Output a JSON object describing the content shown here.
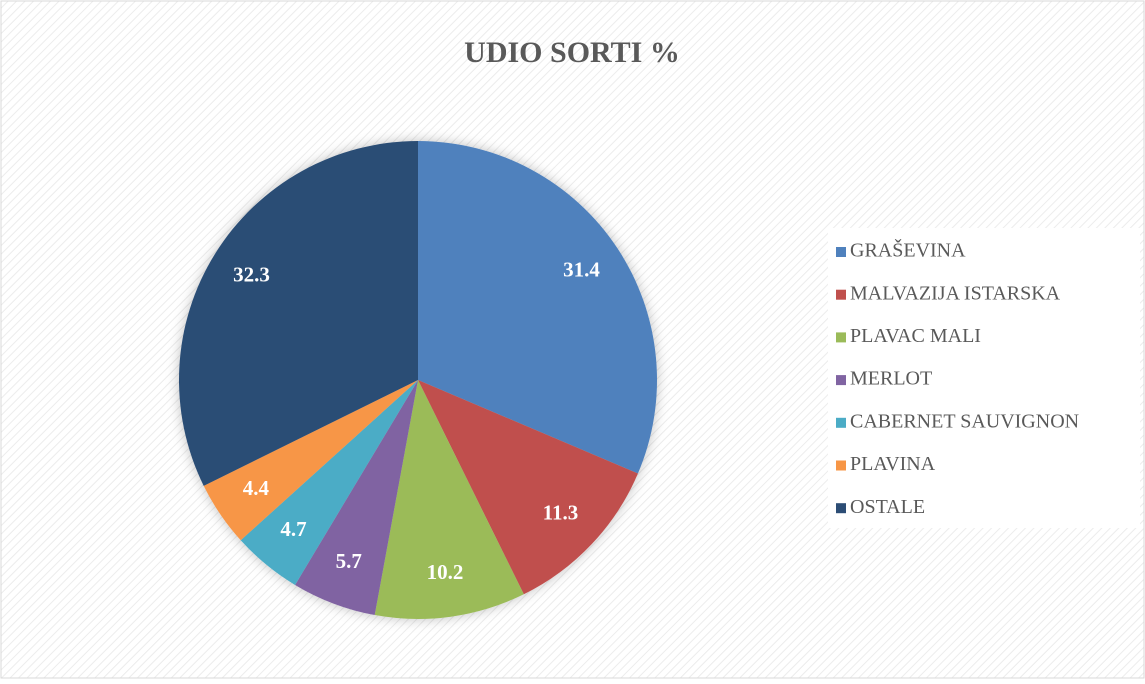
{
  "chart_data": {
    "type": "pie",
    "title": "UDIO SORTI %",
    "categories": [
      "GRAŠEVINA",
      "MALVAZIJA ISTARSKA",
      "PLAVAC MALI",
      "MERLOT",
      "CABERNET SAUVIGNON",
      "PLAVINA",
      "OSTALE"
    ],
    "values": [
      31.4,
      11.3,
      10.2,
      5.7,
      4.7,
      4.4,
      32.3
    ],
    "colors": [
      "#4f81bd",
      "#c0504d",
      "#9bbb59",
      "#8064a2",
      "#4bacc6",
      "#f79646",
      "#2c4d75"
    ],
    "legend": "right"
  }
}
